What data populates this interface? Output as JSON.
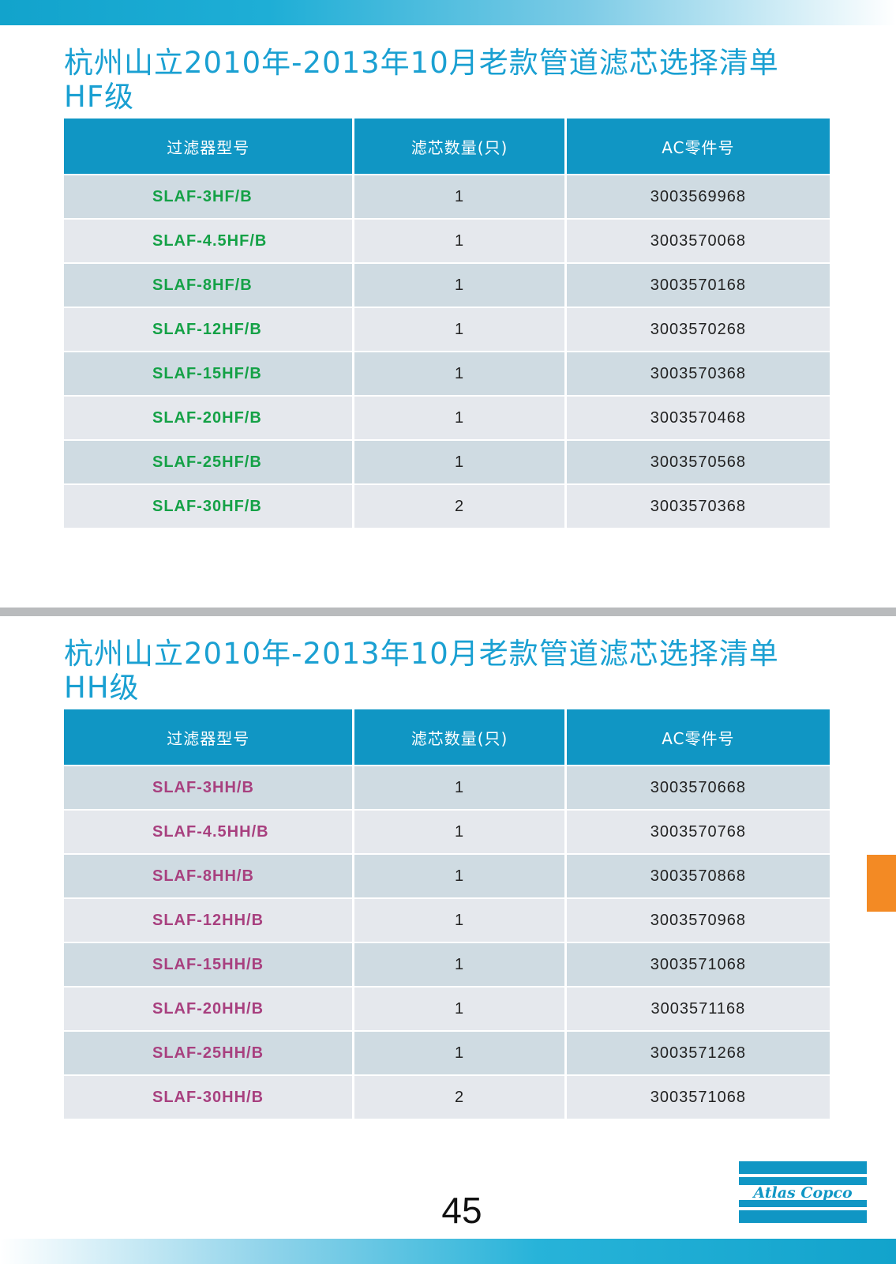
{
  "hf_section": {
    "title_line1": "杭州山立2010年-2013年10月老款管道滤芯选择清单",
    "title_line2": "HF级",
    "headers": [
      "过滤器型号",
      "滤芯数量(只)",
      "AC零件号"
    ],
    "rows": [
      {
        "model": "SLAF-3HF/B",
        "qty": "1",
        "part": "3003569968"
      },
      {
        "model": "SLAF-4.5HF/B",
        "qty": "1",
        "part": "3003570068"
      },
      {
        "model": "SLAF-8HF/B",
        "qty": "1",
        "part": "3003570168"
      },
      {
        "model": "SLAF-12HF/B",
        "qty": "1",
        "part": "3003570268"
      },
      {
        "model": "SLAF-15HF/B",
        "qty": "1",
        "part": "3003570368"
      },
      {
        "model": "SLAF-20HF/B",
        "qty": "1",
        "part": "3003570468"
      },
      {
        "model": "SLAF-25HF/B",
        "qty": "1",
        "part": "3003570568"
      },
      {
        "model": "SLAF-30HF/B",
        "qty": "2",
        "part": "3003570368"
      }
    ]
  },
  "hh_section": {
    "title_line1": "杭州山立2010年-2013年10月老款管道滤芯选择清单",
    "title_line2": "HH级",
    "headers": [
      "过滤器型号",
      "滤芯数量(只)",
      "AC零件号"
    ],
    "rows": [
      {
        "model": "SLAF-3HH/B",
        "qty": "1",
        "part": "3003570668"
      },
      {
        "model": "SLAF-4.5HH/B",
        "qty": "1",
        "part": "3003570768"
      },
      {
        "model": "SLAF-8HH/B",
        "qty": "1",
        "part": "3003570868"
      },
      {
        "model": "SLAF-12HH/B",
        "qty": "1",
        "part": "3003570968"
      },
      {
        "model": "SLAF-15HH/B",
        "qty": "1",
        "part": "3003571068"
      },
      {
        "model": "SLAF-20HH/B",
        "qty": "1",
        "part": "3003571168"
      },
      {
        "model": "SLAF-25HH/B",
        "qty": "1",
        "part": "3003571268"
      },
      {
        "model": "SLAF-30HH/B",
        "qty": "2",
        "part": "3003571068"
      }
    ]
  },
  "footer": {
    "page_number": "45",
    "logo_text": "Atlas Copco"
  },
  "colors": {
    "accent_blue": "#1aa0d2",
    "header_blue": "#1096c4",
    "hf_model_green": "#14a146",
    "hh_model_magenta": "#a8407f",
    "side_tab_orange": "#f38a24"
  }
}
